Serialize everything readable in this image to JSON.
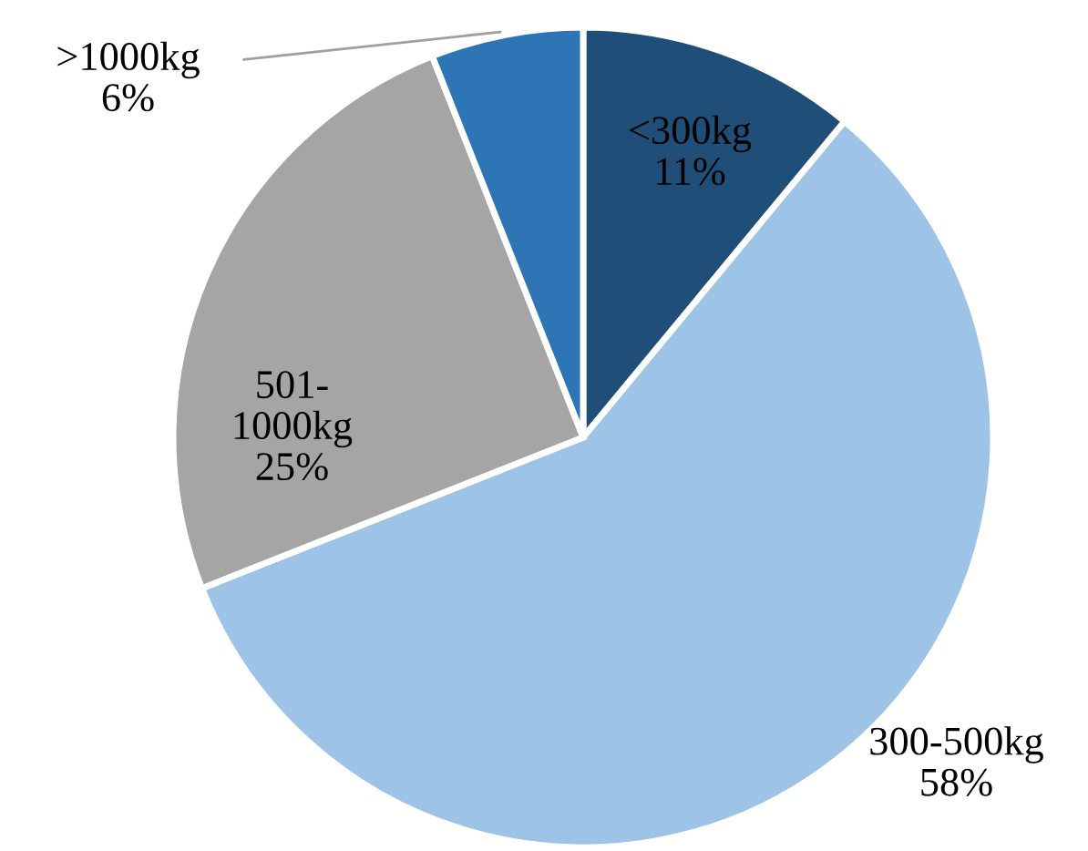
{
  "chart_data": {
    "type": "pie",
    "categories": [
      "<300kg",
      "300-500kg",
      "501-1000kg",
      ">1000kg"
    ],
    "values": [
      11,
      58,
      25,
      6
    ],
    "colors": [
      "#1f4e79",
      "#9dc3e6",
      "#a5a5a5",
      "#2e75b6"
    ],
    "value_labels": [
      "11%",
      "58%",
      "25%",
      "6%"
    ]
  }
}
